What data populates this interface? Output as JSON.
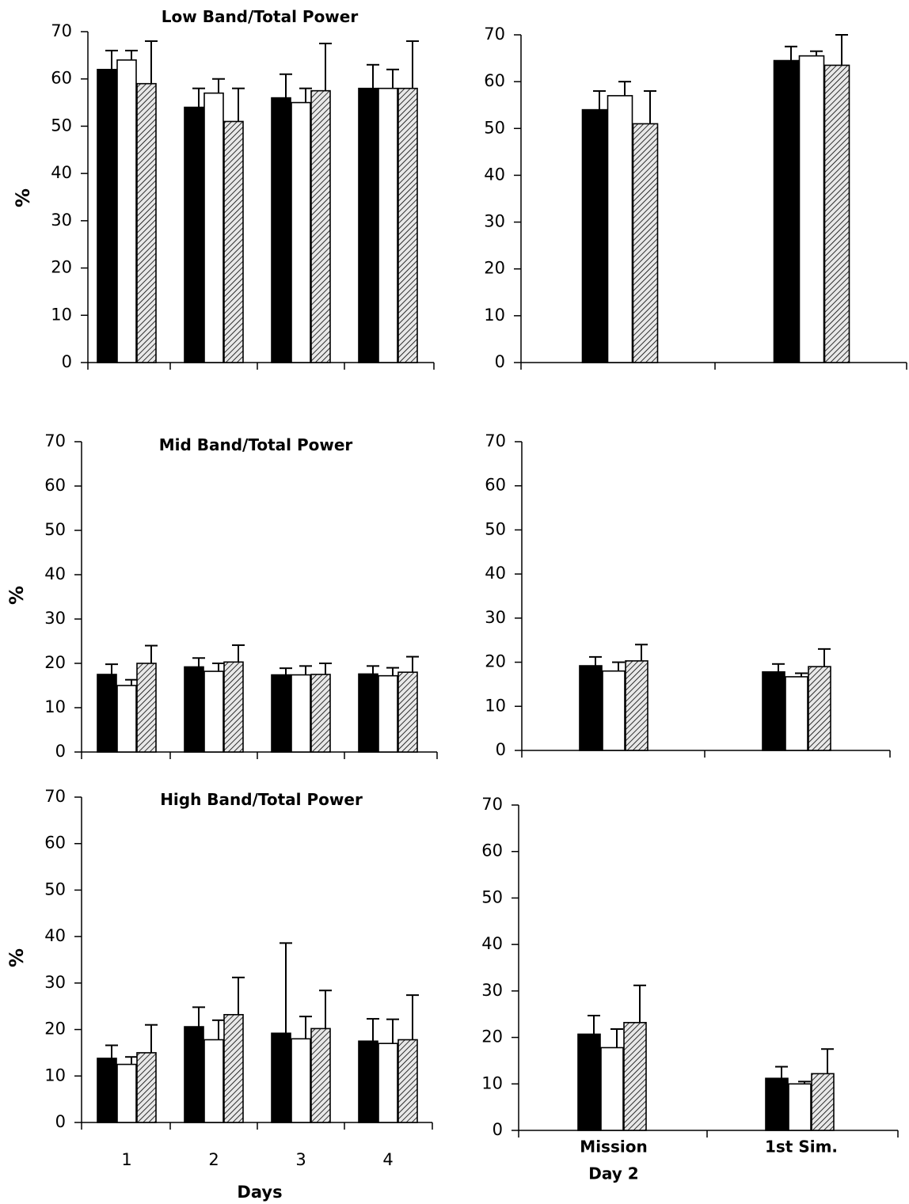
{
  "chart_data": [
    {
      "type": "bar",
      "title": "Low Band/Total Power",
      "ylabel": "%",
      "xlabel": "",
      "ylim": [
        0,
        70
      ],
      "yticks": [
        0,
        10,
        20,
        30,
        40,
        50,
        60,
        70
      ],
      "categories": [
        "1",
        "2",
        "3",
        "4"
      ],
      "show_category_labels": false,
      "grid": false,
      "series": [
        {
          "style": "black",
          "values": [
            62,
            54,
            56,
            58
          ],
          "errors": [
            4,
            4,
            5,
            5
          ]
        },
        {
          "style": "white",
          "values": [
            64,
            57,
            55,
            58
          ],
          "errors": [
            2,
            3,
            3,
            4
          ]
        },
        {
          "style": "hatched",
          "values": [
            59,
            51,
            57.5,
            58
          ],
          "errors": [
            9,
            7,
            10,
            10
          ]
        }
      ]
    },
    {
      "type": "bar",
      "title": "",
      "ylabel": "",
      "xlabel": "",
      "ylim": [
        0,
        70
      ],
      "yticks": [
        0,
        10,
        20,
        30,
        40,
        50,
        60,
        70
      ],
      "categories": [
        "Mission Day 2",
        "1st Sim."
      ],
      "show_category_labels": false,
      "grid": false,
      "series": [
        {
          "style": "black",
          "values": [
            54,
            64.5
          ],
          "errors": [
            4,
            3
          ]
        },
        {
          "style": "white",
          "values": [
            57,
            65.5
          ],
          "errors": [
            3,
            1
          ]
        },
        {
          "style": "hatched",
          "values": [
            51,
            63.5
          ],
          "errors": [
            7,
            6.5
          ]
        }
      ]
    },
    {
      "type": "bar",
      "title": "Mid Band/Total Power",
      "ylabel": "%",
      "xlabel": "",
      "ylim": [
        0,
        70
      ],
      "yticks": [
        0,
        10,
        20,
        30,
        40,
        50,
        60,
        70
      ],
      "categories": [
        "1",
        "2",
        "3",
        "4"
      ],
      "show_category_labels": false,
      "grid": false,
      "series": [
        {
          "style": "black",
          "values": [
            17.5,
            19.2,
            17.4,
            17.6
          ],
          "errors": [
            2.3,
            2,
            1.5,
            1.8
          ]
        },
        {
          "style": "white",
          "values": [
            15,
            18.2,
            17.4,
            17.2
          ],
          "errors": [
            1.3,
            1.8,
            2,
            1.8
          ]
        },
        {
          "style": "hatched",
          "values": [
            20,
            20.3,
            17.5,
            18
          ],
          "errors": [
            4,
            3.8,
            2.5,
            3.5
          ]
        }
      ]
    },
    {
      "type": "bar",
      "title": "",
      "ylabel": "",
      "xlabel": "",
      "ylim": [
        0,
        70
      ],
      "yticks": [
        0,
        10,
        20,
        30,
        40,
        50,
        60,
        70
      ],
      "categories": [
        "Mission Day 2",
        "1st Sim."
      ],
      "show_category_labels": false,
      "grid": false,
      "series": [
        {
          "style": "black",
          "values": [
            19.2,
            17.8
          ],
          "errors": [
            2,
            1.8
          ]
        },
        {
          "style": "white",
          "values": [
            18,
            16.7
          ],
          "errors": [
            2,
            0.8
          ]
        },
        {
          "style": "hatched",
          "values": [
            20.3,
            19
          ],
          "errors": [
            3.7,
            4
          ]
        }
      ]
    },
    {
      "type": "bar",
      "title": "High Band/Total Power",
      "ylabel": "%",
      "xlabel": "Days",
      "ylim": [
        0,
        70
      ],
      "yticks": [
        0,
        10,
        20,
        30,
        40,
        50,
        60,
        70
      ],
      "categories": [
        "1",
        "2",
        "3",
        "4"
      ],
      "show_category_labels": true,
      "grid": false,
      "series": [
        {
          "style": "black",
          "values": [
            13.8,
            20.6,
            19.2,
            17.5
          ],
          "errors": [
            2.8,
            4.2,
            19.4,
            4.8
          ]
        },
        {
          "style": "white",
          "values": [
            12.5,
            17.8,
            18,
            17
          ],
          "errors": [
            1.6,
            4.2,
            4.8,
            5.2
          ]
        },
        {
          "style": "hatched",
          "values": [
            15,
            23.2,
            20.2,
            17.8
          ],
          "errors": [
            6,
            8,
            8.2,
            9.6
          ]
        }
      ]
    },
    {
      "type": "bar",
      "title": "",
      "ylabel": "",
      "xlabel": "",
      "ylim": [
        0,
        70
      ],
      "yticks": [
        0,
        10,
        20,
        30,
        40,
        50,
        60,
        70
      ],
      "categories": [
        "Mission Day 2",
        "1st Sim."
      ],
      "show_category_labels": true,
      "grid": false,
      "series": [
        {
          "style": "black",
          "values": [
            20.7,
            11.2
          ],
          "errors": [
            4,
            2.5
          ]
        },
        {
          "style": "white",
          "values": [
            17.8,
            10
          ],
          "errors": [
            4,
            0.5
          ]
        },
        {
          "style": "hatched",
          "values": [
            23.2,
            12.2
          ],
          "errors": [
            8,
            5.3
          ]
        }
      ]
    }
  ]
}
